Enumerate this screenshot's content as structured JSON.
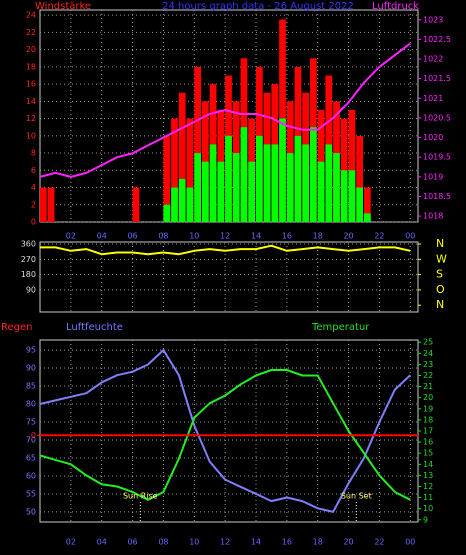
{
  "chart_data": [
    {
      "type": "bar",
      "title": "24 hours graph data - 26 August 2022",
      "title_color": "#3333ff",
      "ylabel": "Windstärke",
      "y2label": "Luftdruck",
      "xlim": [
        0,
        24.5
      ],
      "xticks": [
        {
          "value": 2,
          "label": "02"
        },
        {
          "value": 4,
          "label": "04"
        },
        {
          "value": 6,
          "label": "06"
        },
        {
          "value": 8,
          "label": "08"
        },
        10,
        12,
        14,
        16,
        18,
        20,
        22,
        {
          "value": 24,
          "label": "00"
        }
      ],
      "xtick_color": "#6666ff",
      "ylim": [
        0,
        24.6
      ],
      "yticks": [
        0,
        2,
        4,
        6,
        8,
        10,
        12,
        14,
        16,
        18,
        20,
        22,
        24
      ],
      "ytick_color": "#ff2222",
      "y2lim": [
        1017.85,
        1023.25
      ],
      "y2ticks": [
        1018,
        1018.5,
        1019,
        1019.5,
        1020,
        1020.5,
        1021,
        1021.5,
        1022,
        1022.5,
        1023
      ],
      "y2tick_color": "#ff22ff",
      "grid": true,
      "series": [
        {
          "type": "bar",
          "color": "#ff0000",
          "x": [
            0,
            0.5,
            1,
            1.5,
            2,
            2.5,
            3,
            3.5,
            4,
            4.5,
            5,
            5.5,
            6,
            6.5,
            7,
            7.5,
            8,
            8.5,
            9,
            9.5,
            10,
            10.5,
            11,
            11.5,
            12,
            12.5,
            13,
            13.5,
            14,
            14.5,
            15,
            15.5,
            16,
            16.5,
            17,
            17.5,
            18,
            18.5,
            19,
            19.5,
            20,
            20.5,
            21,
            21.5,
            22,
            22.5,
            23,
            23.5
          ],
          "values": [
            4,
            4,
            0,
            0,
            0,
            0,
            0,
            0,
            0,
            0,
            0,
            0,
            4,
            0,
            0,
            0,
            10,
            12,
            15,
            12,
            18,
            14,
            16,
            13,
            17,
            14,
            19,
            12,
            18,
            15,
            16,
            23.5,
            14,
            18,
            15,
            19,
            13,
            17,
            14,
            12,
            13,
            10,
            4,
            0,
            0,
            0,
            0,
            0
          ]
        },
        {
          "type": "bar",
          "color": "#00ff00",
          "x": [
            0,
            0.5,
            1,
            1.5,
            2,
            2.5,
            3,
            3.5,
            4,
            4.5,
            5,
            5.5,
            6,
            6.5,
            7,
            7.5,
            8,
            8.5,
            9,
            9.5,
            10,
            10.5,
            11,
            11.5,
            12,
            12.5,
            13,
            13.5,
            14,
            14.5,
            15,
            15.5,
            16,
            16.5,
            17,
            17.5,
            18,
            18.5,
            19,
            19.5,
            20,
            20.5,
            21,
            21.5,
            22,
            22.5,
            23,
            23.5
          ],
          "values": [
            0,
            0,
            0,
            0,
            0,
            0,
            0,
            0,
            0,
            0,
            0,
            0,
            0,
            0,
            0,
            0,
            2,
            4,
            5,
            4,
            8,
            7,
            9,
            7,
            10,
            8,
            11,
            7,
            10,
            9,
            9,
            12,
            8,
            10,
            9,
            11,
            7,
            9,
            8,
            6,
            6,
            4,
            1,
            0,
            0,
            0,
            0,
            0
          ]
        },
        {
          "type": "line",
          "axis": "y2",
          "color": "#ff22ff",
          "x": [
            0,
            1,
            2,
            3,
            4,
            5,
            6,
            7,
            8,
            9,
            10,
            11,
            12,
            13,
            14,
            15,
            16,
            17,
            18,
            19,
            20,
            21,
            22,
            23,
            24
          ],
          "values": [
            1019.0,
            1019.1,
            1019.0,
            1019.1,
            1019.3,
            1019.5,
            1019.6,
            1019.8,
            1020.0,
            1020.2,
            1020.4,
            1020.6,
            1020.7,
            1020.6,
            1020.6,
            1020.5,
            1020.3,
            1020.2,
            1020.2,
            1020.5,
            1020.9,
            1021.4,
            1021.8,
            1022.1,
            1022.4
          ]
        }
      ]
    },
    {
      "type": "line",
      "xlim": [
        0,
        24.5
      ],
      "xticks": [
        {
          "value": 2,
          "label": "02"
        },
        {
          "value": 4,
          "label": "04"
        },
        {
          "value": 6,
          "label": "06"
        },
        {
          "value": 8,
          "label": "08"
        },
        10,
        12,
        14,
        16,
        18,
        20,
        22,
        {
          "value": 24,
          "label": "00"
        }
      ],
      "ylim": [
        -40,
        372
      ],
      "yticks": [
        90,
        180,
        270,
        360
      ],
      "ytick_color": "#dddddd",
      "y2lim": [
        -40,
        372
      ],
      "y2ticks": [
        {
          "value": 360,
          "label": "N"
        },
        {
          "value": 270,
          "label": "W"
        },
        {
          "value": 180,
          "label": "S"
        },
        {
          "value": 90,
          "label": "O"
        },
        {
          "value": 0,
          "label": "N"
        }
      ],
      "y2tick_color": "#ffff00",
      "grid": true,
      "series": [
        {
          "type": "line",
          "color": "#ffff00",
          "x": [
            0,
            1,
            2,
            3,
            4,
            5,
            6,
            7,
            8,
            9,
            10,
            11,
            12,
            13,
            14,
            15,
            16,
            17,
            18,
            19,
            20,
            21,
            22,
            23,
            24
          ],
          "values": [
            340,
            340,
            320,
            330,
            300,
            310,
            310,
            300,
            310,
            300,
            320,
            330,
            320,
            330,
            330,
            350,
            320,
            330,
            340,
            330,
            320,
            330,
            340,
            340,
            320
          ]
        }
      ]
    },
    {
      "type": "line",
      "ylabel": "Luftfeuchte",
      "y2label": "Temperatur",
      "y3label": "Regen",
      "xlim": [
        0,
        24.5
      ],
      "xticks": [
        {
          "value": 2,
          "label": "02"
        },
        {
          "value": 4,
          "label": "04"
        },
        {
          "value": 6,
          "label": "06"
        },
        {
          "value": 8,
          "label": "08"
        },
        10,
        12,
        14,
        16,
        18,
        20,
        22,
        {
          "value": 24,
          "label": "00"
        }
      ],
      "xtick_color": "#6666ff",
      "ylim": [
        47.2,
        97.8
      ],
      "yticks": [
        50,
        55,
        60,
        65,
        70,
        75,
        80,
        85,
        90,
        95
      ],
      "ytick_color": "#7777ff",
      "y2lim": [
        8.8,
        25.2
      ],
      "y2ticks": [
        9,
        10,
        11,
        12,
        13,
        14,
        15,
        16,
        17,
        18,
        19,
        20,
        21,
        22,
        23,
        24,
        25
      ],
      "y2tick_color": "#22dd22",
      "y3lim": [
        -1,
        1.1
      ],
      "y3ticks": [
        0
      ],
      "y3tick_color": "#ff2222",
      "grid": true,
      "annotations": [
        {
          "text": "Sun Rise",
          "x": 6.5
        },
        {
          "text": "Sun Set",
          "x": 20.5
        }
      ],
      "series": [
        {
          "type": "line",
          "color": "#8080ff",
          "x": [
            0,
            1,
            2,
            3,
            4,
            5,
            6,
            7,
            8,
            9,
            10,
            11,
            12,
            13,
            14,
            15,
            16,
            17,
            18,
            19,
            20,
            21,
            22,
            23,
            24
          ],
          "values": [
            80,
            81,
            82,
            83,
            86,
            88,
            89,
            91,
            95,
            88,
            74,
            64,
            59,
            57,
            55,
            53,
            54,
            53,
            51,
            50,
            58,
            65,
            75,
            84,
            88
          ]
        },
        {
          "type": "line",
          "axis": "y2",
          "color": "#22ee22",
          "x": [
            0,
            1,
            2,
            3,
            4,
            5,
            6,
            7,
            8,
            9,
            10,
            11,
            12,
            13,
            14,
            15,
            16,
            17,
            18,
            19,
            20,
            21,
            22,
            23,
            24
          ],
          "values": [
            14.8,
            14.4,
            14.0,
            13.0,
            12.2,
            12.0,
            11.5,
            10.8,
            11.5,
            14.5,
            18.2,
            19.5,
            20.2,
            21.2,
            22.0,
            22.5,
            22.5,
            22.0,
            22.0,
            19.5,
            17.0,
            15.0,
            13.0,
            11.5,
            10.8
          ]
        },
        {
          "type": "line",
          "axis": "y3",
          "color": "#ff0000",
          "x": [
            0,
            24.5
          ],
          "values": [
            0,
            0
          ]
        }
      ]
    }
  ]
}
